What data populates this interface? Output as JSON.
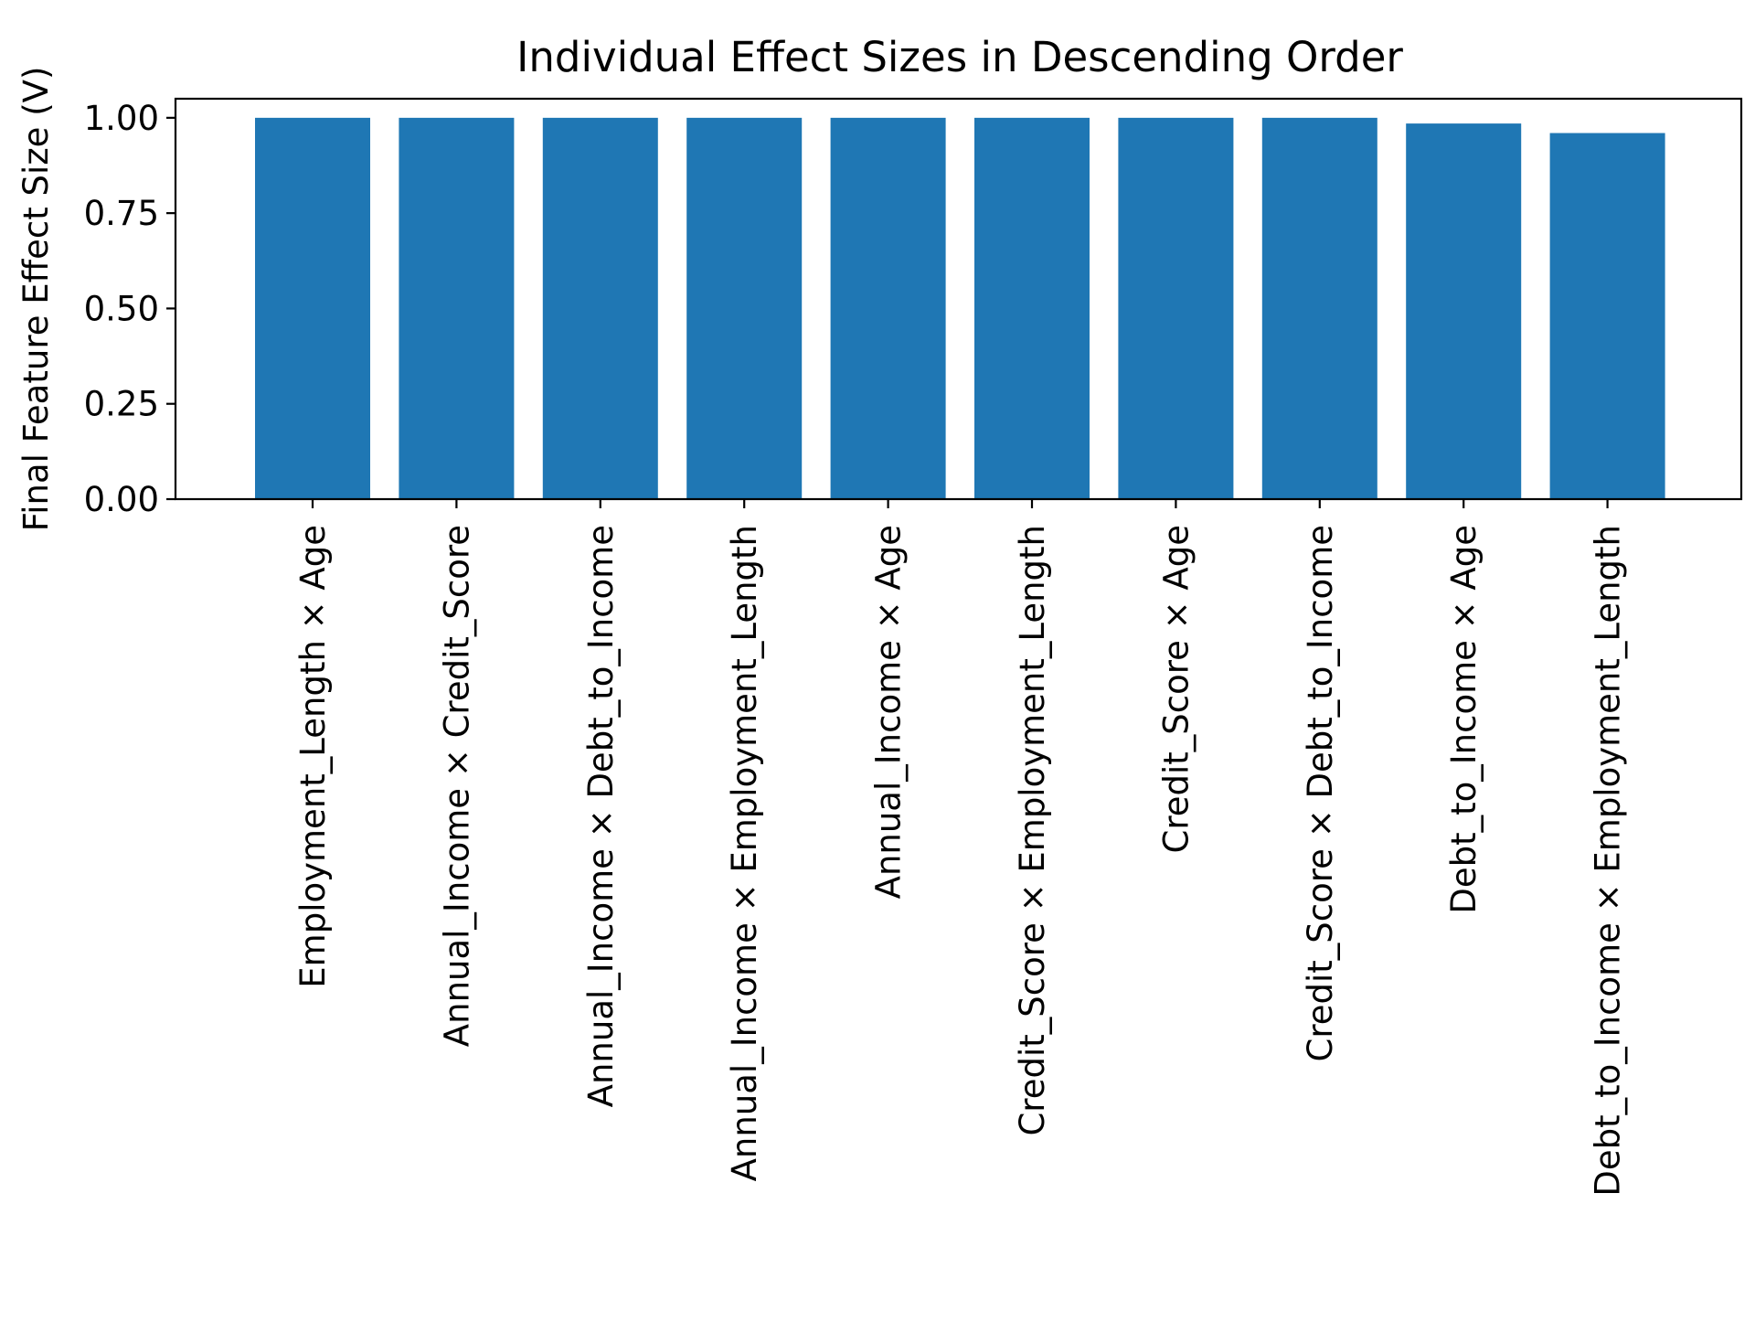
{
  "chart_data": {
    "type": "bar",
    "title": "Individual Effect Sizes in Descending Order",
    "xlabel": "",
    "ylabel": "Final Feature Effect Size (V)",
    "categories": [
      "Employment_Length × Age",
      "Annual_Income × Credit_Score",
      "Annual_Income × Debt_to_Income",
      "Annual_Income × Employment_Length",
      "Annual_Income × Age",
      "Credit_Score × Employment_Length",
      "Credit_Score × Age",
      "Credit_Score × Debt_to_Income",
      "Debt_to_Income × Age",
      "Debt_to_Income × Employment_Length"
    ],
    "values": [
      1.0,
      1.0,
      1.0,
      1.0,
      1.0,
      1.0,
      1.0,
      1.0,
      0.985,
      0.96
    ],
    "ylim": [
      0,
      1.05
    ],
    "yticks": [
      "0.00",
      "0.25",
      "0.50",
      "0.75",
      "1.00"
    ],
    "grid": false,
    "bar_color": "#1f77b4"
  }
}
